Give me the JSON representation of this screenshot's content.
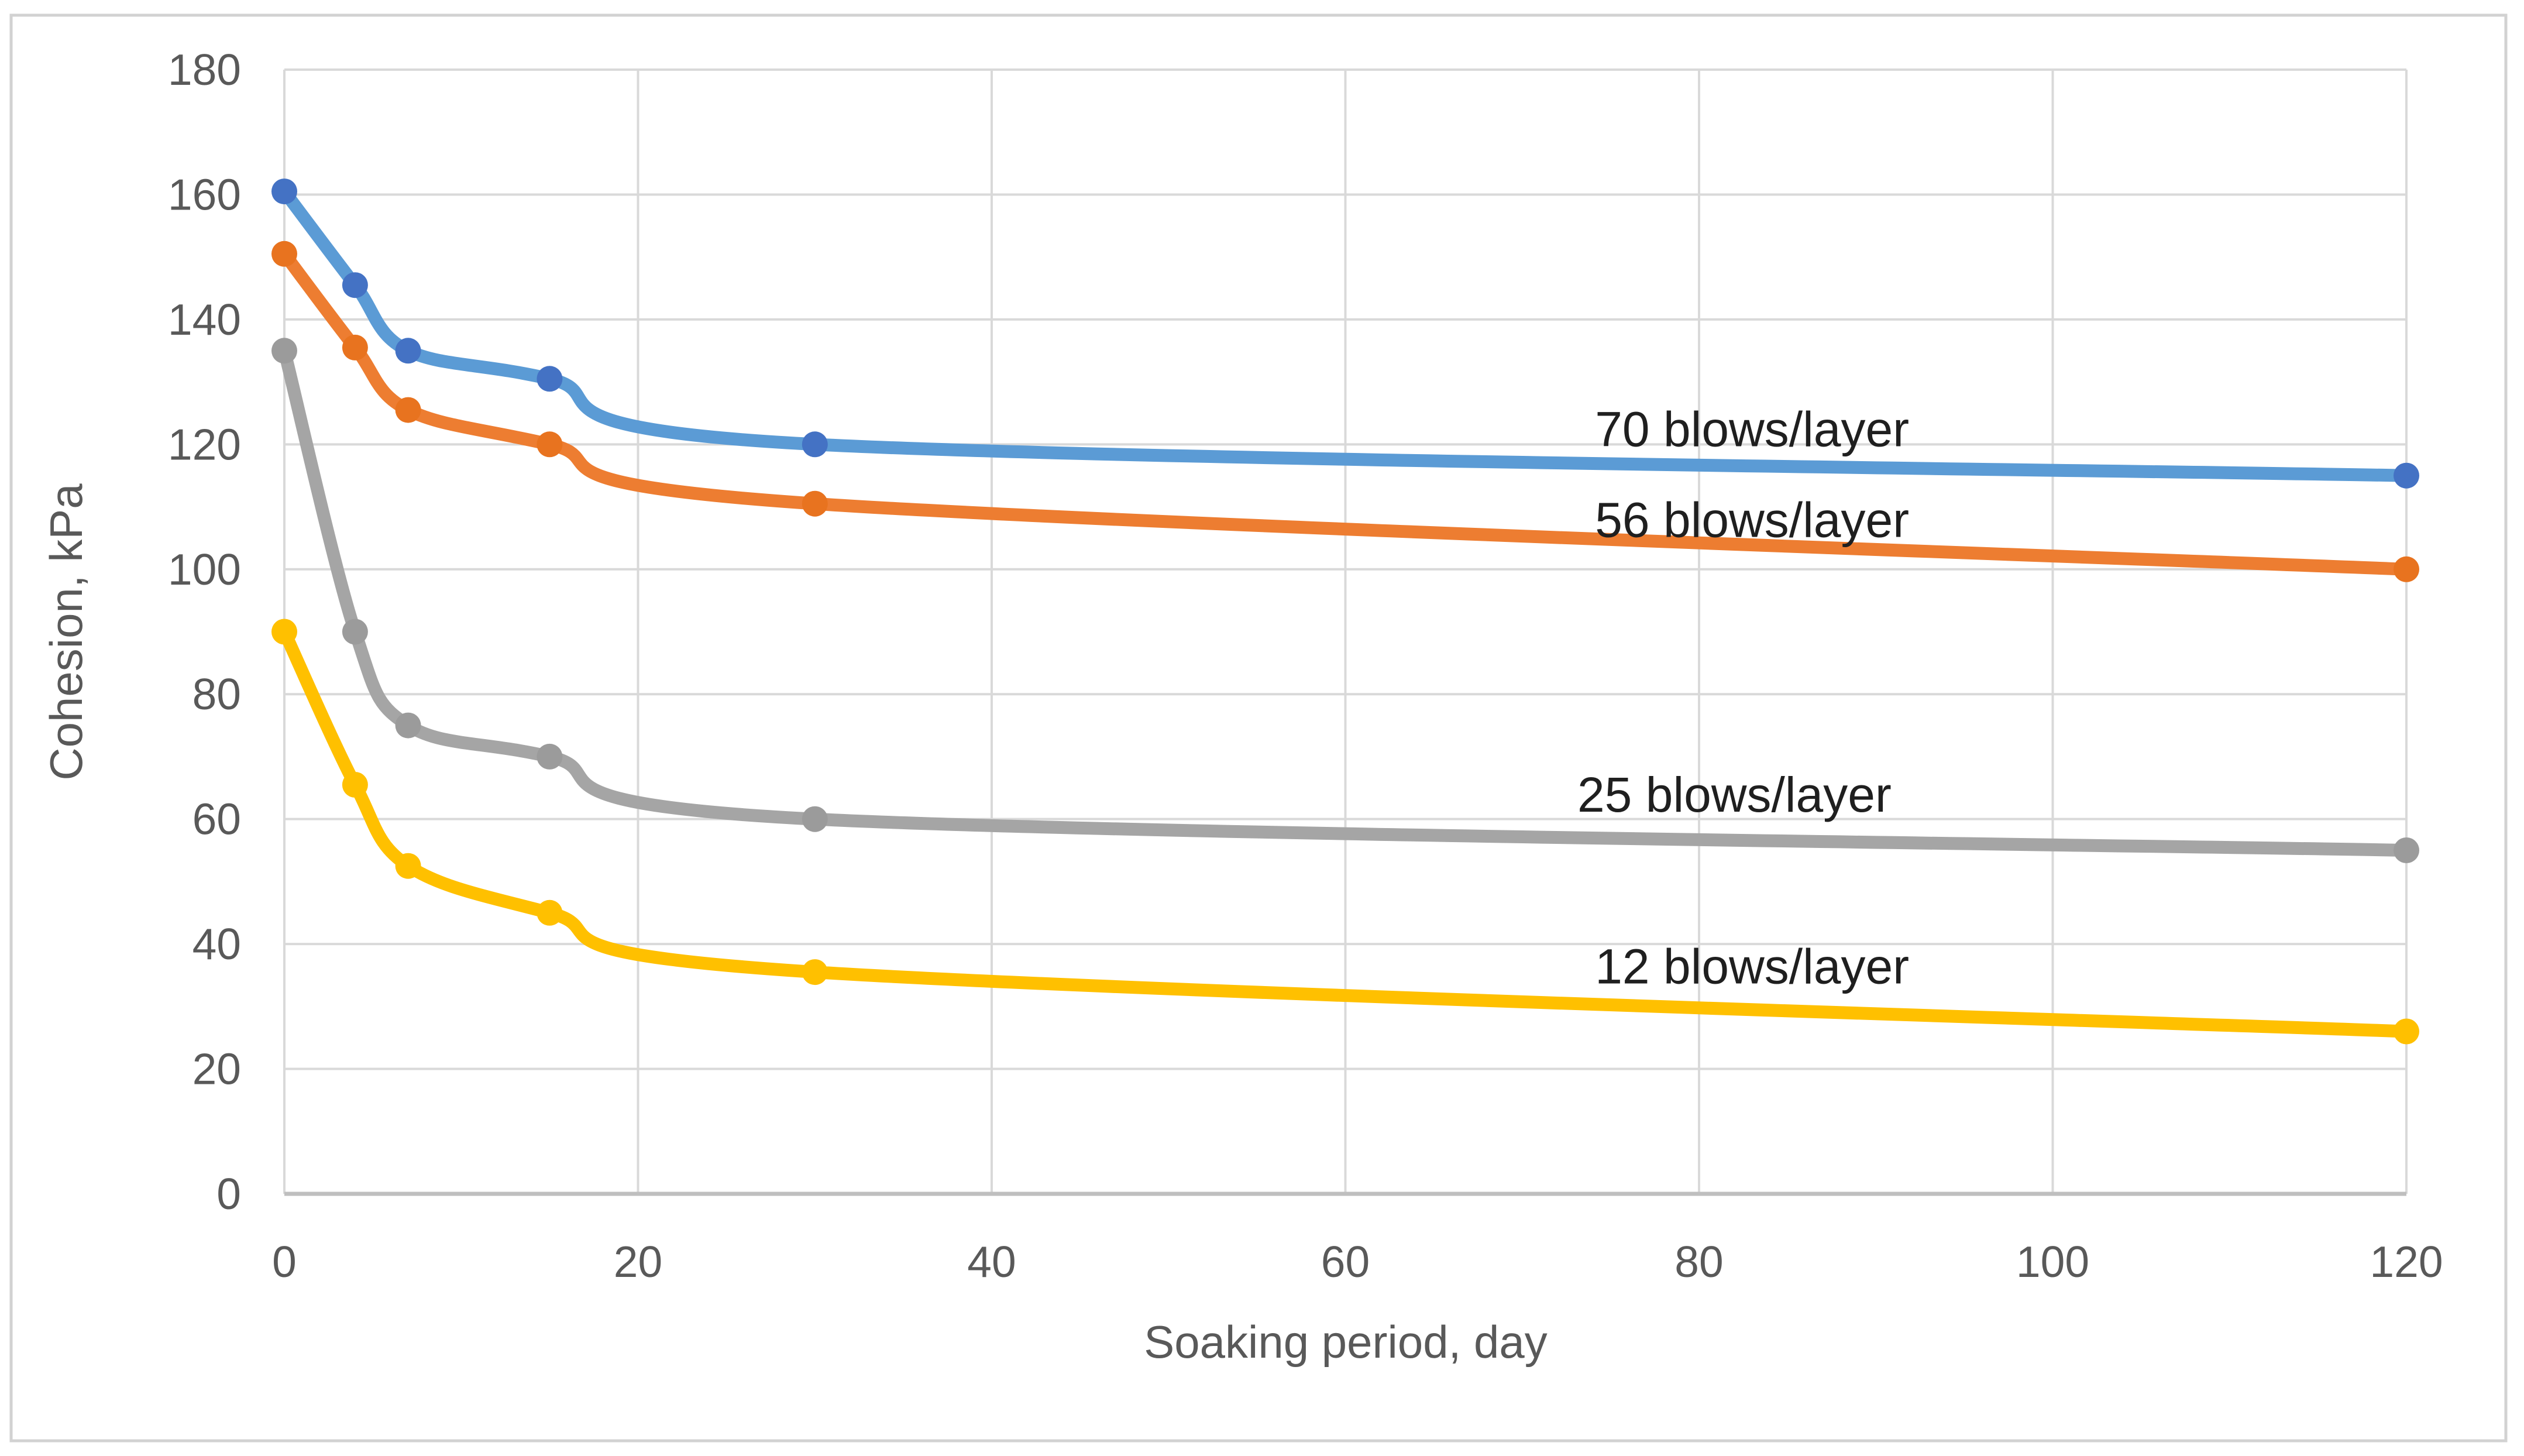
{
  "figure": {
    "background": "#ffffff",
    "border_color": "#d2d2d2",
    "gridline_color": "#d9d9d9",
    "axis_line_color": "#bfbfbf",
    "tick_text_color": "#595959",
    "annotation_text_color": "#1f1f1f"
  },
  "chart_data": {
    "type": "line",
    "title": "",
    "xlabel": "Soaking period, day",
    "ylabel": "Cohesion, kPa",
    "xlim": [
      0,
      120
    ],
    "ylim": [
      0,
      180
    ],
    "x_ticks": [
      0,
      20,
      40,
      60,
      80,
      100,
      120
    ],
    "y_ticks": [
      0,
      20,
      40,
      60,
      80,
      100,
      120,
      140,
      160,
      180
    ],
    "grid": true,
    "legend_position": "inline-annotations",
    "x": [
      0,
      4,
      7,
      15,
      30,
      120
    ],
    "series": [
      {
        "name": "70 blows/layer",
        "values": [
          160.5,
          145.5,
          135,
          130.5,
          120,
          115
        ],
        "line_color": "#5b9bd5",
        "marker_color": "#4472c4"
      },
      {
        "name": "56 blows/layer",
        "values": [
          150.5,
          135.5,
          125.5,
          120,
          110.5,
          100
        ],
        "line_color": "#ed7d31",
        "marker_color": "#e8731f"
      },
      {
        "name": "25 blows/layer",
        "values": [
          135,
          90,
          75,
          70,
          60,
          55
        ],
        "line_color": "#a5a5a5",
        "marker_color": "#9b9b9b"
      },
      {
        "name": "12 blows/layer",
        "values": [
          90,
          65.5,
          52.5,
          45,
          35.5,
          26
        ],
        "line_color": "#ffc000",
        "marker_color": "#ffc000"
      }
    ],
    "annotations": [
      {
        "text": "70 blows/layer",
        "x": 83,
        "y": 122.5
      },
      {
        "text": "56 blows/layer",
        "x": 83,
        "y": 108
      },
      {
        "text": "25 blows/layer",
        "x": 82,
        "y": 64
      },
      {
        "text": "12 blows/layer",
        "x": 83,
        "y": 36.5
      }
    ]
  }
}
